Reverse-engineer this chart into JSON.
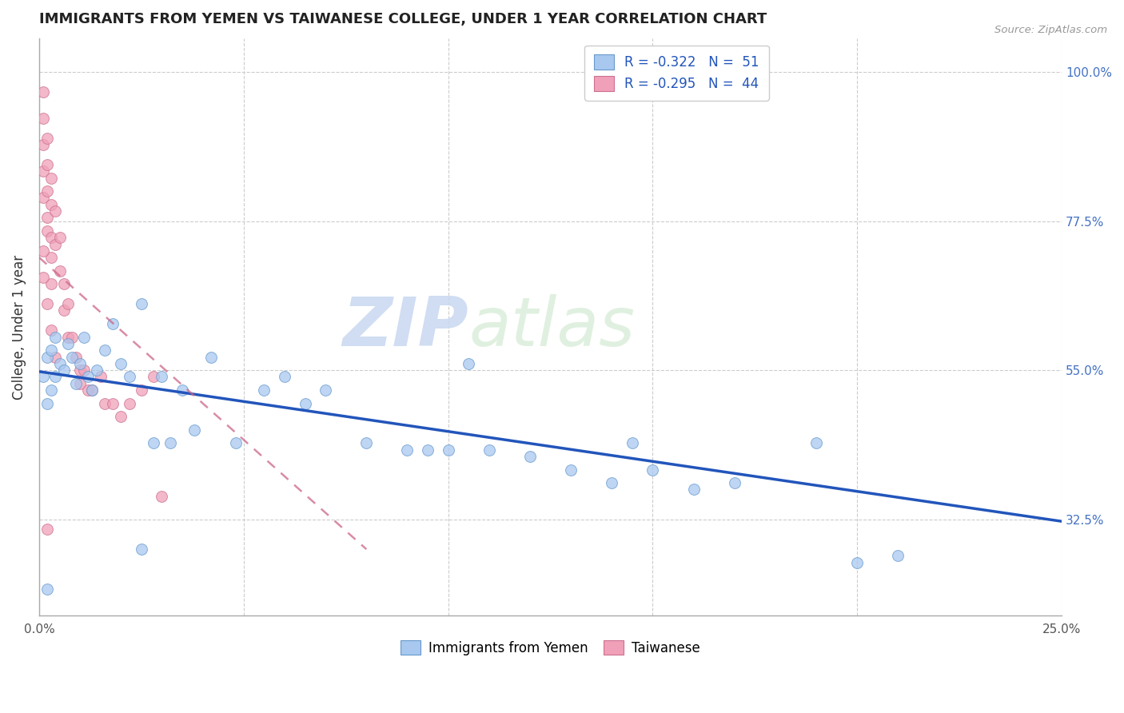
{
  "title": "IMMIGRANTS FROM YEMEN VS TAIWANESE COLLEGE, UNDER 1 YEAR CORRELATION CHART",
  "source": "Source: ZipAtlas.com",
  "ylabel": "College, Under 1 year",
  "legend_label1": "Immigrants from Yemen",
  "legend_label2": "Taiwanese",
  "legend_r1": "R = -0.322",
  "legend_n1": "N =  51",
  "legend_r2": "R = -0.295",
  "legend_n2": "N =  44",
  "xlim": [
    0.0,
    0.25
  ],
  "ylim": [
    0.18,
    1.05
  ],
  "xticks": [
    0.0,
    0.05,
    0.1,
    0.15,
    0.2,
    0.25
  ],
  "xtick_labels_show": [
    "0.0%",
    "",
    "",
    "",
    "",
    "25.0%"
  ],
  "yticks": [
    0.325,
    0.55,
    0.775,
    1.0
  ],
  "ytick_labels": [
    "32.5%",
    "55.0%",
    "77.5%",
    "100.0%"
  ],
  "color_blue": "#A8C8F0",
  "color_blue_edge": "#6699CC",
  "color_pink": "#F0A0B8",
  "color_pink_edge": "#CC7090",
  "color_line_blue": "#2255BB",
  "color_line_pink": "#CC6688",
  "watermark_zip": "ZIP",
  "watermark_atlas": "atlas",
  "blue_x": [
    0.001,
    0.002,
    0.002,
    0.003,
    0.003,
    0.004,
    0.004,
    0.005,
    0.006,
    0.007,
    0.008,
    0.009,
    0.01,
    0.011,
    0.012,
    0.013,
    0.014,
    0.016,
    0.018,
    0.02,
    0.022,
    0.025,
    0.028,
    0.03,
    0.032,
    0.035,
    0.038,
    0.042,
    0.048,
    0.055,
    0.06,
    0.065,
    0.07,
    0.08,
    0.09,
    0.095,
    0.1,
    0.105,
    0.11,
    0.12,
    0.13,
    0.14,
    0.145,
    0.15,
    0.16,
    0.17,
    0.19,
    0.2,
    0.21,
    0.002,
    0.025
  ],
  "blue_y": [
    0.54,
    0.5,
    0.57,
    0.52,
    0.58,
    0.54,
    0.6,
    0.56,
    0.55,
    0.59,
    0.57,
    0.53,
    0.56,
    0.6,
    0.54,
    0.52,
    0.55,
    0.58,
    0.62,
    0.56,
    0.54,
    0.65,
    0.44,
    0.54,
    0.44,
    0.52,
    0.46,
    0.57,
    0.44,
    0.52,
    0.54,
    0.5,
    0.52,
    0.44,
    0.43,
    0.43,
    0.43,
    0.56,
    0.43,
    0.42,
    0.4,
    0.38,
    0.44,
    0.4,
    0.37,
    0.38,
    0.44,
    0.26,
    0.27,
    0.22,
    0.28
  ],
  "pink_x": [
    0.001,
    0.001,
    0.001,
    0.001,
    0.001,
    0.002,
    0.002,
    0.002,
    0.002,
    0.002,
    0.003,
    0.003,
    0.003,
    0.003,
    0.003,
    0.004,
    0.004,
    0.005,
    0.005,
    0.006,
    0.006,
    0.007,
    0.007,
    0.008,
    0.009,
    0.01,
    0.011,
    0.012,
    0.013,
    0.015,
    0.016,
    0.018,
    0.02,
    0.022,
    0.025,
    0.028,
    0.03,
    0.001,
    0.001,
    0.002,
    0.003,
    0.004,
    0.002,
    0.01
  ],
  "pink_y": [
    0.97,
    0.93,
    0.89,
    0.85,
    0.81,
    0.9,
    0.86,
    0.82,
    0.78,
    0.76,
    0.84,
    0.8,
    0.75,
    0.72,
    0.68,
    0.79,
    0.74,
    0.75,
    0.7,
    0.68,
    0.64,
    0.65,
    0.6,
    0.6,
    0.57,
    0.55,
    0.55,
    0.52,
    0.52,
    0.54,
    0.5,
    0.5,
    0.48,
    0.5,
    0.52,
    0.54,
    0.36,
    0.73,
    0.69,
    0.65,
    0.61,
    0.57,
    0.31,
    0.53
  ],
  "blue_trend_x": [
    0.0,
    0.25
  ],
  "blue_trend_y": [
    0.548,
    0.322
  ],
  "pink_trend_x": [
    0.0,
    0.08
  ],
  "pink_trend_y": [
    0.72,
    0.28
  ]
}
